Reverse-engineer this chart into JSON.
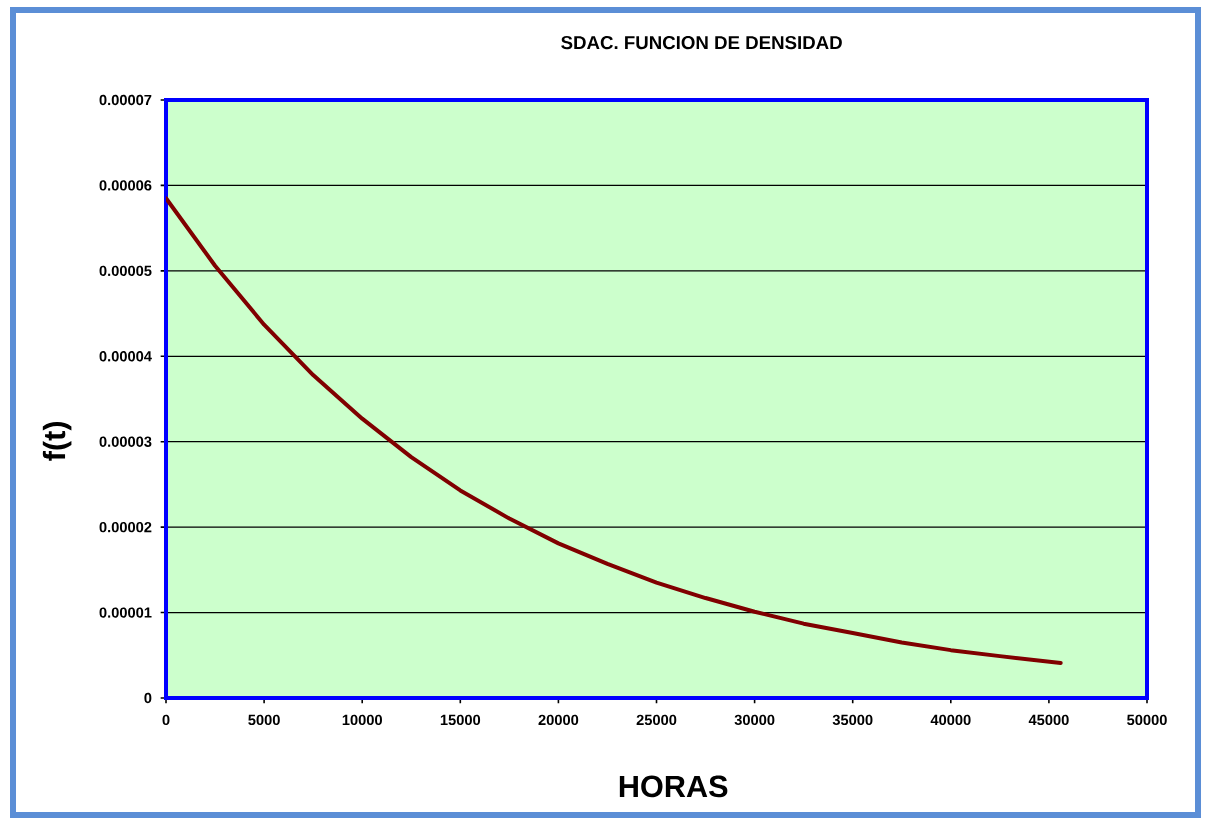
{
  "chart_data": {
    "type": "line",
    "title": "SDAC. FUNCION DE DENSIDAD",
    "xlabel": "HORAS",
    "ylabel": "f(t)",
    "x": [
      0,
      2500,
      5000,
      7500,
      10000,
      12500,
      15000,
      17500,
      20000,
      22500,
      25000,
      27500,
      30000,
      32500,
      35000,
      37500,
      40000,
      42500,
      45600
    ],
    "series": [
      {
        "color": "#800000",
        "values": [
          5.85e-05,
          5.06e-05,
          4.37e-05,
          3.78e-05,
          3.27e-05,
          2.82e-05,
          2.43e-05,
          2.1e-05,
          1.81e-05,
          1.57e-05,
          1.35e-05,
          1.17e-05,
          1.01e-05,
          8.7e-06,
          7.6e-06,
          6.5e-06,
          5.6e-06,
          4.9e-06,
          4.1e-06
        ]
      }
    ],
    "xlim": [
      0,
      50000
    ],
    "ylim": [
      0,
      7e-05
    ],
    "xticks": [
      0,
      5000,
      10000,
      15000,
      20000,
      25000,
      30000,
      35000,
      40000,
      45000,
      50000
    ],
    "yticks": [
      0,
      {
        "value": 1e-05,
        "label": "0.00001"
      },
      {
        "value": 2e-05,
        "label": "0.00002"
      },
      {
        "value": 3e-05,
        "label": "0.00003"
      },
      {
        "value": 4e-05,
        "label": "0.00004"
      },
      {
        "value": 5e-05,
        "label": "0.00005"
      },
      {
        "value": 6e-05,
        "label": "0.00006"
      },
      {
        "value": 7e-05,
        "label": "0.00007"
      }
    ],
    "grid": "y"
  }
}
